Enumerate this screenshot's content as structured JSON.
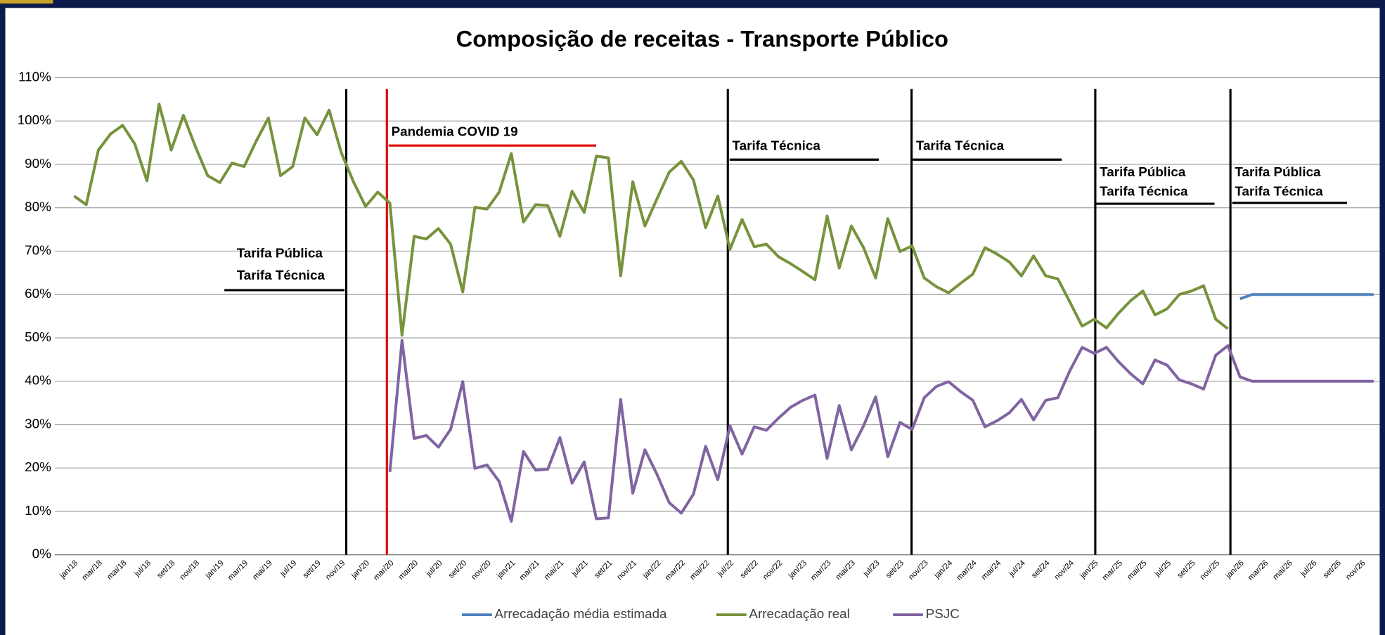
{
  "chart_data": {
    "type": "line",
    "title": "Composição de receitas - Transporte Público",
    "categories": [
      "jan/18",
      null,
      "mar/18",
      null,
      "mai/18",
      null,
      "jul/18",
      null,
      "set/18",
      null,
      "nov/18",
      null,
      "jan/19",
      null,
      "mar/19",
      null,
      "mai/19",
      null,
      "jul/19",
      null,
      "set/19",
      null,
      "nov/19",
      null,
      "jan/20",
      null,
      "mar/20",
      null,
      "mai/20",
      null,
      "jul/20",
      null,
      "set/20",
      null,
      "nov/20",
      null,
      "jan/21",
      null,
      "mar/21",
      null,
      "mai/21",
      null,
      "jul/21",
      null,
      "set/21",
      null,
      "nov/21",
      null,
      "jan/22",
      null,
      "mar/22",
      null,
      "mai/22",
      null,
      "jul/22",
      null,
      "set/22",
      null,
      "nov/22",
      null,
      "jan/23",
      null,
      "mar/23",
      null,
      "mai/23",
      null,
      "jul/23",
      null,
      "set/23",
      null,
      "nov/23",
      null,
      "jan/24",
      null,
      "mar/24",
      null,
      "mai/24",
      null,
      "jul/24",
      null,
      "set/24",
      null,
      "nov/24",
      null,
      "jan/25",
      null,
      "mar/25",
      null,
      "mai/25",
      null,
      "jul/25",
      null,
      "set/25",
      null,
      "nov/25",
      null,
      "jan/26",
      null,
      "mar/26",
      null,
      "mai/26",
      null,
      "jul/26",
      null,
      "set/26",
      null,
      "nov/26",
      null
    ],
    "series": [
      {
        "name": "Arrecadação média estimada",
        "color": "#4f81bd",
        "values": [
          null,
          null,
          null,
          null,
          null,
          null,
          null,
          null,
          null,
          null,
          null,
          null,
          null,
          null,
          null,
          null,
          null,
          null,
          null,
          null,
          null,
          null,
          null,
          null,
          null,
          null,
          null,
          null,
          null,
          null,
          null,
          null,
          null,
          null,
          null,
          null,
          null,
          null,
          null,
          null,
          null,
          null,
          null,
          null,
          null,
          null,
          null,
          null,
          null,
          null,
          null,
          null,
          null,
          null,
          null,
          null,
          null,
          null,
          null,
          null,
          null,
          null,
          null,
          null,
          null,
          null,
          null,
          null,
          null,
          null,
          null,
          null,
          null,
          null,
          null,
          null,
          null,
          null,
          null,
          null,
          null,
          null,
          null,
          null,
          null,
          null,
          null,
          null,
          null,
          null,
          null,
          null,
          null,
          null,
          null,
          null,
          59,
          60,
          60,
          60,
          60,
          60,
          60,
          60,
          60,
          60,
          60,
          60
        ]
      },
      {
        "name": "Arrecadação real",
        "color": "#77933c",
        "values": [
          82.7,
          80.7,
          93.3,
          97,
          99,
          94.7,
          86.2,
          103.9,
          93.3,
          101.3,
          94,
          87.4,
          85.8,
          90.3,
          89.5,
          95.4,
          100.7,
          87.4,
          89.5,
          100.7,
          96.8,
          102.5,
          92.7,
          86,
          80.3,
          83.6,
          81.1,
          50.6,
          73.4,
          72.8,
          75.2,
          71.6,
          60.6,
          80.1,
          79.7,
          83.6,
          92.5,
          76.7,
          80.7,
          80.5,
          73.4,
          83.8,
          78.9,
          91.9,
          91.5,
          64.3,
          86,
          75.8,
          82.1,
          88.2,
          90.7,
          86.4,
          75.4,
          82.7,
          70.4,
          77.3,
          71,
          71.6,
          68.7,
          67.1,
          65.3,
          63.4,
          78.1,
          66.1,
          75.8,
          70.8,
          63.8,
          77.5,
          69.9,
          71.2,
          63.8,
          61.8,
          60.4,
          62.6,
          64.7,
          70.8,
          69.3,
          67.5,
          64.3,
          68.9,
          64.3,
          63.6,
          58.2,
          52.7,
          54.3,
          52.3,
          55.7,
          58.6,
          60.8,
          55.3,
          56.7,
          60,
          60.8,
          62,
          54.3,
          52.1,
          null,
          null,
          null,
          null,
          null,
          null,
          null,
          null,
          null,
          null,
          null,
          null
        ]
      },
      {
        "name": "PSJC",
        "color": "#8064a2",
        "values": [
          null,
          null,
          null,
          null,
          null,
          null,
          null,
          null,
          null,
          null,
          null,
          null,
          null,
          null,
          null,
          null,
          null,
          null,
          null,
          null,
          null,
          null,
          null,
          null,
          null,
          null,
          19.1,
          49.4,
          26.8,
          27.5,
          24.8,
          28.9,
          39.9,
          19.9,
          20.7,
          16.9,
          7.7,
          23.8,
          19.5,
          19.7,
          27,
          16.5,
          21.4,
          8.3,
          8.5,
          35.8,
          14.2,
          24.2,
          18.5,
          12,
          9.6,
          14,
          25,
          17.3,
          29.7,
          23.2,
          29.5,
          28.7,
          31.5,
          34,
          35.6,
          36.8,
          22.2,
          34.4,
          24.2,
          29.7,
          36.4,
          22.6,
          30.5,
          28.9,
          36.2,
          38.8,
          39.9,
          37.6,
          35.6,
          29.5,
          30.9,
          32.7,
          35.8,
          31.1,
          35.6,
          36.2,
          42.5,
          47.8,
          46.4,
          47.8,
          44.5,
          41.7,
          39.4,
          44.9,
          43.7,
          40.3,
          39.4,
          38.2,
          46,
          48.2,
          41,
          40,
          40,
          40,
          40,
          40,
          40,
          40,
          40,
          40,
          40,
          40
        ]
      }
    ],
    "ylim": [
      0,
      110
    ],
    "yticks": [
      {
        "value": 0,
        "label": "0%"
      },
      {
        "value": 10,
        "label": "10%"
      },
      {
        "value": 20,
        "label": "20%"
      },
      {
        "value": 30,
        "label": "30%"
      },
      {
        "value": 40,
        "label": "40%"
      },
      {
        "value": 50,
        "label": "50%"
      },
      {
        "value": 60,
        "label": "60%"
      },
      {
        "value": 70,
        "label": "70%"
      },
      {
        "value": 80,
        "label": "80%"
      },
      {
        "value": 90,
        "label": "90%"
      },
      {
        "value": 100,
        "label": "100%"
      },
      {
        "value": 110,
        "label": "110%"
      }
    ],
    "grid": true,
    "legend": "bottom",
    "annotations": [
      "Tarifa Pública",
      "Tarifa Técnica",
      "Pandemia COVID 19",
      "Tarifa Técnica",
      "Tarifa Técnica",
      "Tarifa Pública",
      "Tarifa Técnica",
      "Tarifa Pública",
      "Tarifa Técnica"
    ]
  }
}
